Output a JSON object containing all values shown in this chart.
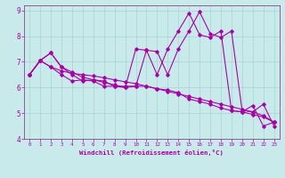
{
  "xlabel": "Windchill (Refroidissement éolien,°C)",
  "background_color": "#c8eaea",
  "grid_color": "#a8d4d4",
  "line_color": "#aa00aa",
  "spine_color": "#884488",
  "xlim": [
    -0.5,
    23.5
  ],
  "ylim": [
    4.0,
    9.2
  ],
  "yticks": [
    4,
    5,
    6,
    7,
    8,
    9
  ],
  "xticks": [
    0,
    1,
    2,
    3,
    4,
    5,
    6,
    7,
    8,
    9,
    10,
    11,
    12,
    13,
    14,
    15,
    16,
    17,
    18,
    19,
    20,
    21,
    22,
    23
  ],
  "series": [
    [
      6.5,
      7.05,
      6.8,
      6.5,
      6.25,
      6.3,
      6.25,
      6.05,
      6.05,
      6.0,
      7.5,
      7.45,
      6.5,
      7.5,
      8.2,
      8.9,
      8.05,
      7.95,
      8.2,
      5.1,
      5.05,
      5.3,
      4.5,
      4.65
    ],
    [
      6.5,
      7.05,
      7.35,
      6.8,
      6.6,
      6.4,
      6.3,
      6.2,
      6.1,
      6.0,
      6.05,
      6.05,
      5.95,
      5.9,
      5.8,
      5.55,
      5.45,
      5.35,
      5.2,
      5.1,
      5.05,
      4.95,
      4.85,
      4.65
    ],
    [
      6.5,
      7.05,
      6.8,
      6.65,
      6.55,
      6.5,
      6.45,
      6.38,
      6.3,
      6.22,
      6.15,
      6.05,
      5.95,
      5.85,
      5.75,
      5.65,
      5.55,
      5.45,
      5.35,
      5.25,
      5.15,
      5.05,
      4.9,
      4.65
    ],
    [
      6.5,
      7.05,
      7.35,
      6.8,
      6.5,
      6.25,
      6.3,
      6.25,
      6.05,
      6.05,
      6.05,
      7.45,
      7.4,
      6.5,
      7.5,
      8.2,
      8.95,
      8.1,
      7.95,
      8.2,
      5.1,
      5.05,
      5.35,
      4.5
    ]
  ]
}
